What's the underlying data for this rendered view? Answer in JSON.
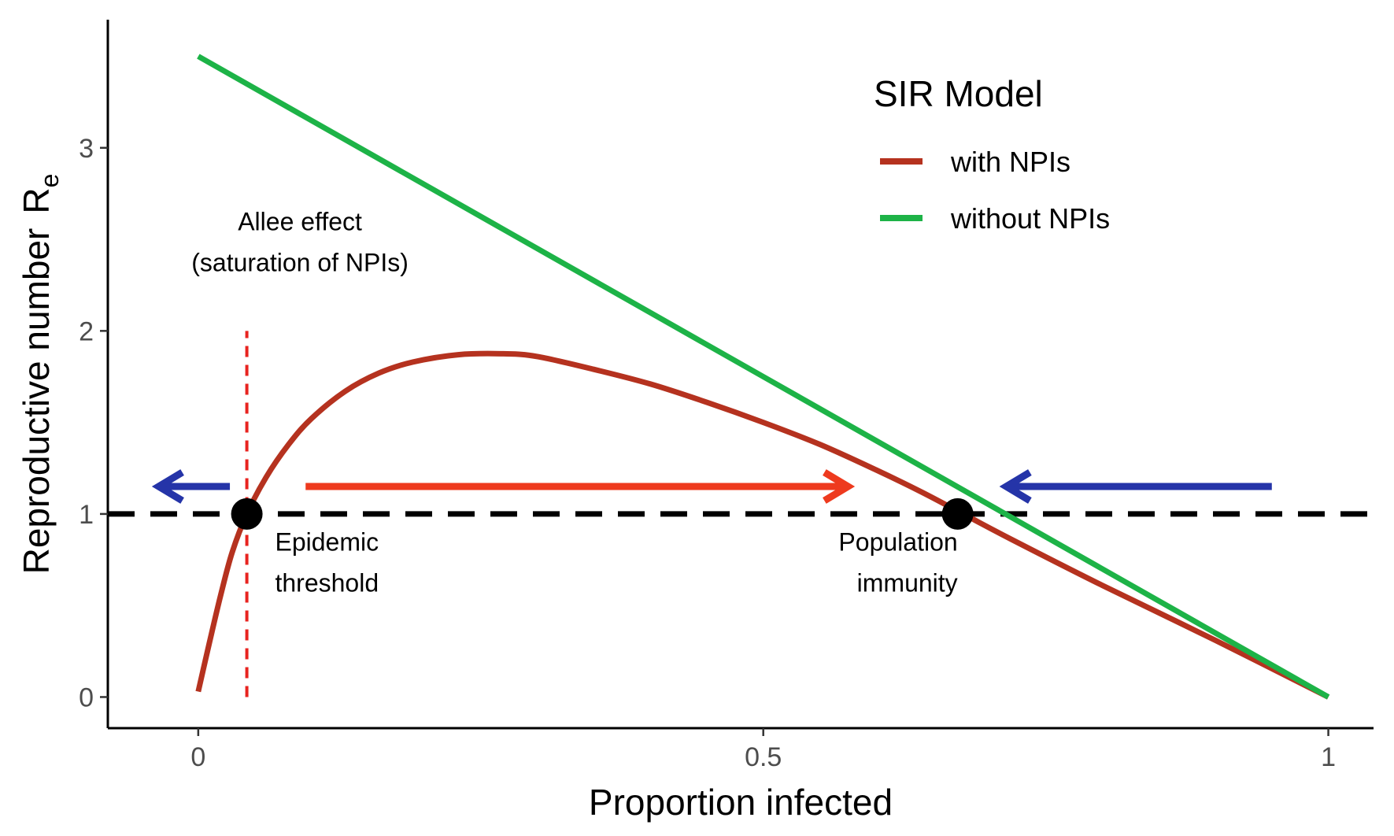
{
  "chart_data": {
    "type": "line",
    "xlabel": "Proportion infected",
    "ylabel": "Reproductive number",
    "ylabel_subscript": "e",
    "xlim": [
      -0.08,
      1.04
    ],
    "ylim": [
      -0.17,
      3.7
    ],
    "x_ticks": [
      {
        "value": 0,
        "label": "0"
      },
      {
        "value": 0.5,
        "label": "0.5"
      },
      {
        "value": 1,
        "label": "1"
      }
    ],
    "y_ticks": [
      {
        "value": 0,
        "label": "0"
      },
      {
        "value": 1,
        "label": "1"
      },
      {
        "value": 2,
        "label": "2"
      },
      {
        "value": 3,
        "label": "3"
      }
    ],
    "grid": false,
    "legend": {
      "title": "SIR Model",
      "position": "top-right"
    },
    "series": [
      {
        "name": "with NPIs",
        "color": "#b5321f",
        "x": [
          0,
          0.01,
          0.02,
          0.03,
          0.043,
          0.06,
          0.08,
          0.1,
          0.13,
          0.16,
          0.19,
          0.23,
          0.27,
          0.3,
          0.35,
          0.4,
          0.45,
          0.5,
          0.55,
          0.6,
          0.64,
          0.68,
          0.72,
          0.8,
          0.9,
          1.0
        ],
        "y": [
          0.03,
          0.3,
          0.56,
          0.79,
          1.0,
          1.2,
          1.38,
          1.52,
          1.67,
          1.77,
          1.83,
          1.87,
          1.875,
          1.86,
          1.79,
          1.71,
          1.61,
          1.5,
          1.38,
          1.24,
          1.12,
          0.99,
          0.86,
          0.61,
          0.31,
          0.0
        ]
      },
      {
        "name": "without NPIs",
        "color": "#1db347",
        "x": [
          0,
          1
        ],
        "y": [
          3.5,
          0.0
        ]
      }
    ],
    "reference_lines": [
      {
        "orientation": "horizontal",
        "y": 1,
        "style": "dashed",
        "color": "#000000"
      },
      {
        "orientation": "vertical",
        "x": 0.043,
        "y_range": [
          0,
          2
        ],
        "style": "dotted",
        "color": "#e8231f"
      }
    ],
    "points": [
      {
        "x": 0.043,
        "y": 1,
        "color": "#000000"
      },
      {
        "x": 0.672,
        "y": 1,
        "color": "#000000"
      }
    ],
    "arrows": [
      {
        "x_from": 0.028,
        "x_to": -0.035,
        "y": 1.15,
        "color": "#2534a8"
      },
      {
        "x_from": 0.095,
        "x_to": 0.575,
        "y": 1.15,
        "color": "#ee3a1e"
      },
      {
        "x_from": 0.95,
        "x_to": 0.715,
        "y": 1.15,
        "color": "#2534a8"
      }
    ],
    "annotations": [
      {
        "lines": [
          "Allee effect",
          "(saturation of NPIs)"
        ],
        "x": 0.09,
        "y": 2.55,
        "anchor": "middle"
      },
      {
        "lines": [
          "Epidemic",
          "threshold"
        ],
        "x": 0.068,
        "y": 0.8,
        "anchor": "start"
      },
      {
        "lines": [
          "Population",
          "immunity"
        ],
        "x": 0.672,
        "y": 0.8,
        "anchor": "end"
      }
    ]
  }
}
